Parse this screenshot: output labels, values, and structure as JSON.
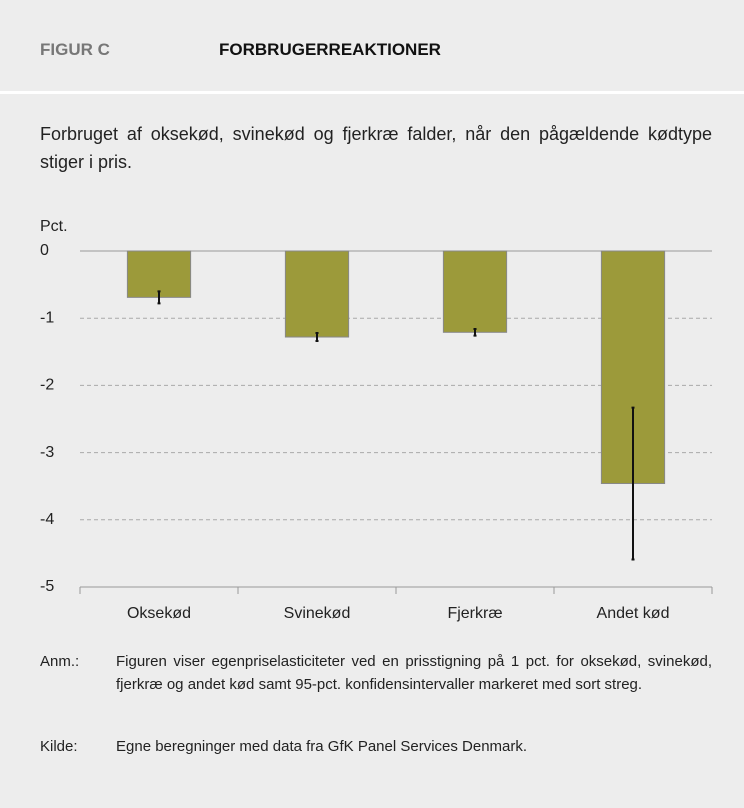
{
  "header": {
    "label": "FIGUR C",
    "title": "FORBRUGERREAKTIONER"
  },
  "subtitle": "Forbruget af oksekød, svinekød og fjerkræ falder, når den pågældende kødtype stiger i pris.",
  "chart_data": {
    "type": "bar",
    "y_label": "Pct.",
    "categories": [
      "Oksekød",
      "Svinekød",
      "Fjerkræ",
      "Andet kød"
    ],
    "values": [
      -0.69,
      -1.28,
      -1.21,
      -3.46
    ],
    "errors": [
      0.09,
      0.06,
      0.05,
      1.13
    ],
    "color": "#9c9a3a",
    "error_color": "#111111",
    "ylim": [
      -5,
      0
    ],
    "yticks": [
      -5,
      -4,
      -3,
      -2,
      -1,
      0
    ],
    "grid": true
  },
  "notes": [
    {
      "key": "Anm.:",
      "text": "Figuren viser egenpriselasticiteter ved en prisstigning på 1 pct. for oksekød, svinekød, fjerkræ og andet kød samt 95-pct. konfidensintervaller markeret med sort streg."
    },
    {
      "key": "Kilde:",
      "text": "Egne beregninger med data fra GfK Panel Services Denmark."
    }
  ]
}
